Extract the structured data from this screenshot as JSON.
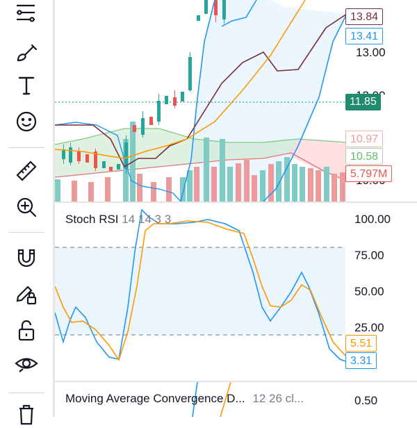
{
  "toolbar": {
    "tools": [
      {
        "name": "indicator-lines-icon"
      },
      {
        "name": "brush-icon"
      },
      {
        "name": "text-tool-icon"
      },
      {
        "name": "emoji-icon"
      },
      {
        "name": "ruler-icon"
      },
      {
        "name": "zoom-in-icon"
      },
      {
        "name": "magnet-icon"
      },
      {
        "name": "lock-pencil-icon"
      },
      {
        "name": "unlock-icon"
      },
      {
        "name": "eye-icon"
      },
      {
        "name": "trash-icon"
      }
    ]
  },
  "main_chart": {
    "axis_labels": [
      "13.00",
      "10.00"
    ],
    "partial_top_label": "12.00",
    "tags": {
      "p1": "13.84",
      "p2": "13.41",
      "last": "11.85",
      "cloud_a": "10.97",
      "cloud_b": "10.58",
      "volume": "5.797M"
    },
    "colors": {
      "up": "#26a69a",
      "down": "#ef5350",
      "blue": "#2196f3",
      "orange": "#ff9800",
      "maroon": "#7b2d3a"
    }
  },
  "stoch_rsi": {
    "title": "Stoch RSI",
    "params": "14 14 3 3",
    "axis_labels": [
      "100.00",
      "75.00",
      "50.00",
      "25.00"
    ],
    "k_value": "3.31",
    "d_value": "5.51"
  },
  "macd": {
    "title": "Moving Average Convergence D...",
    "params": "12 26 cl...",
    "axis_label": "0.50"
  }
}
